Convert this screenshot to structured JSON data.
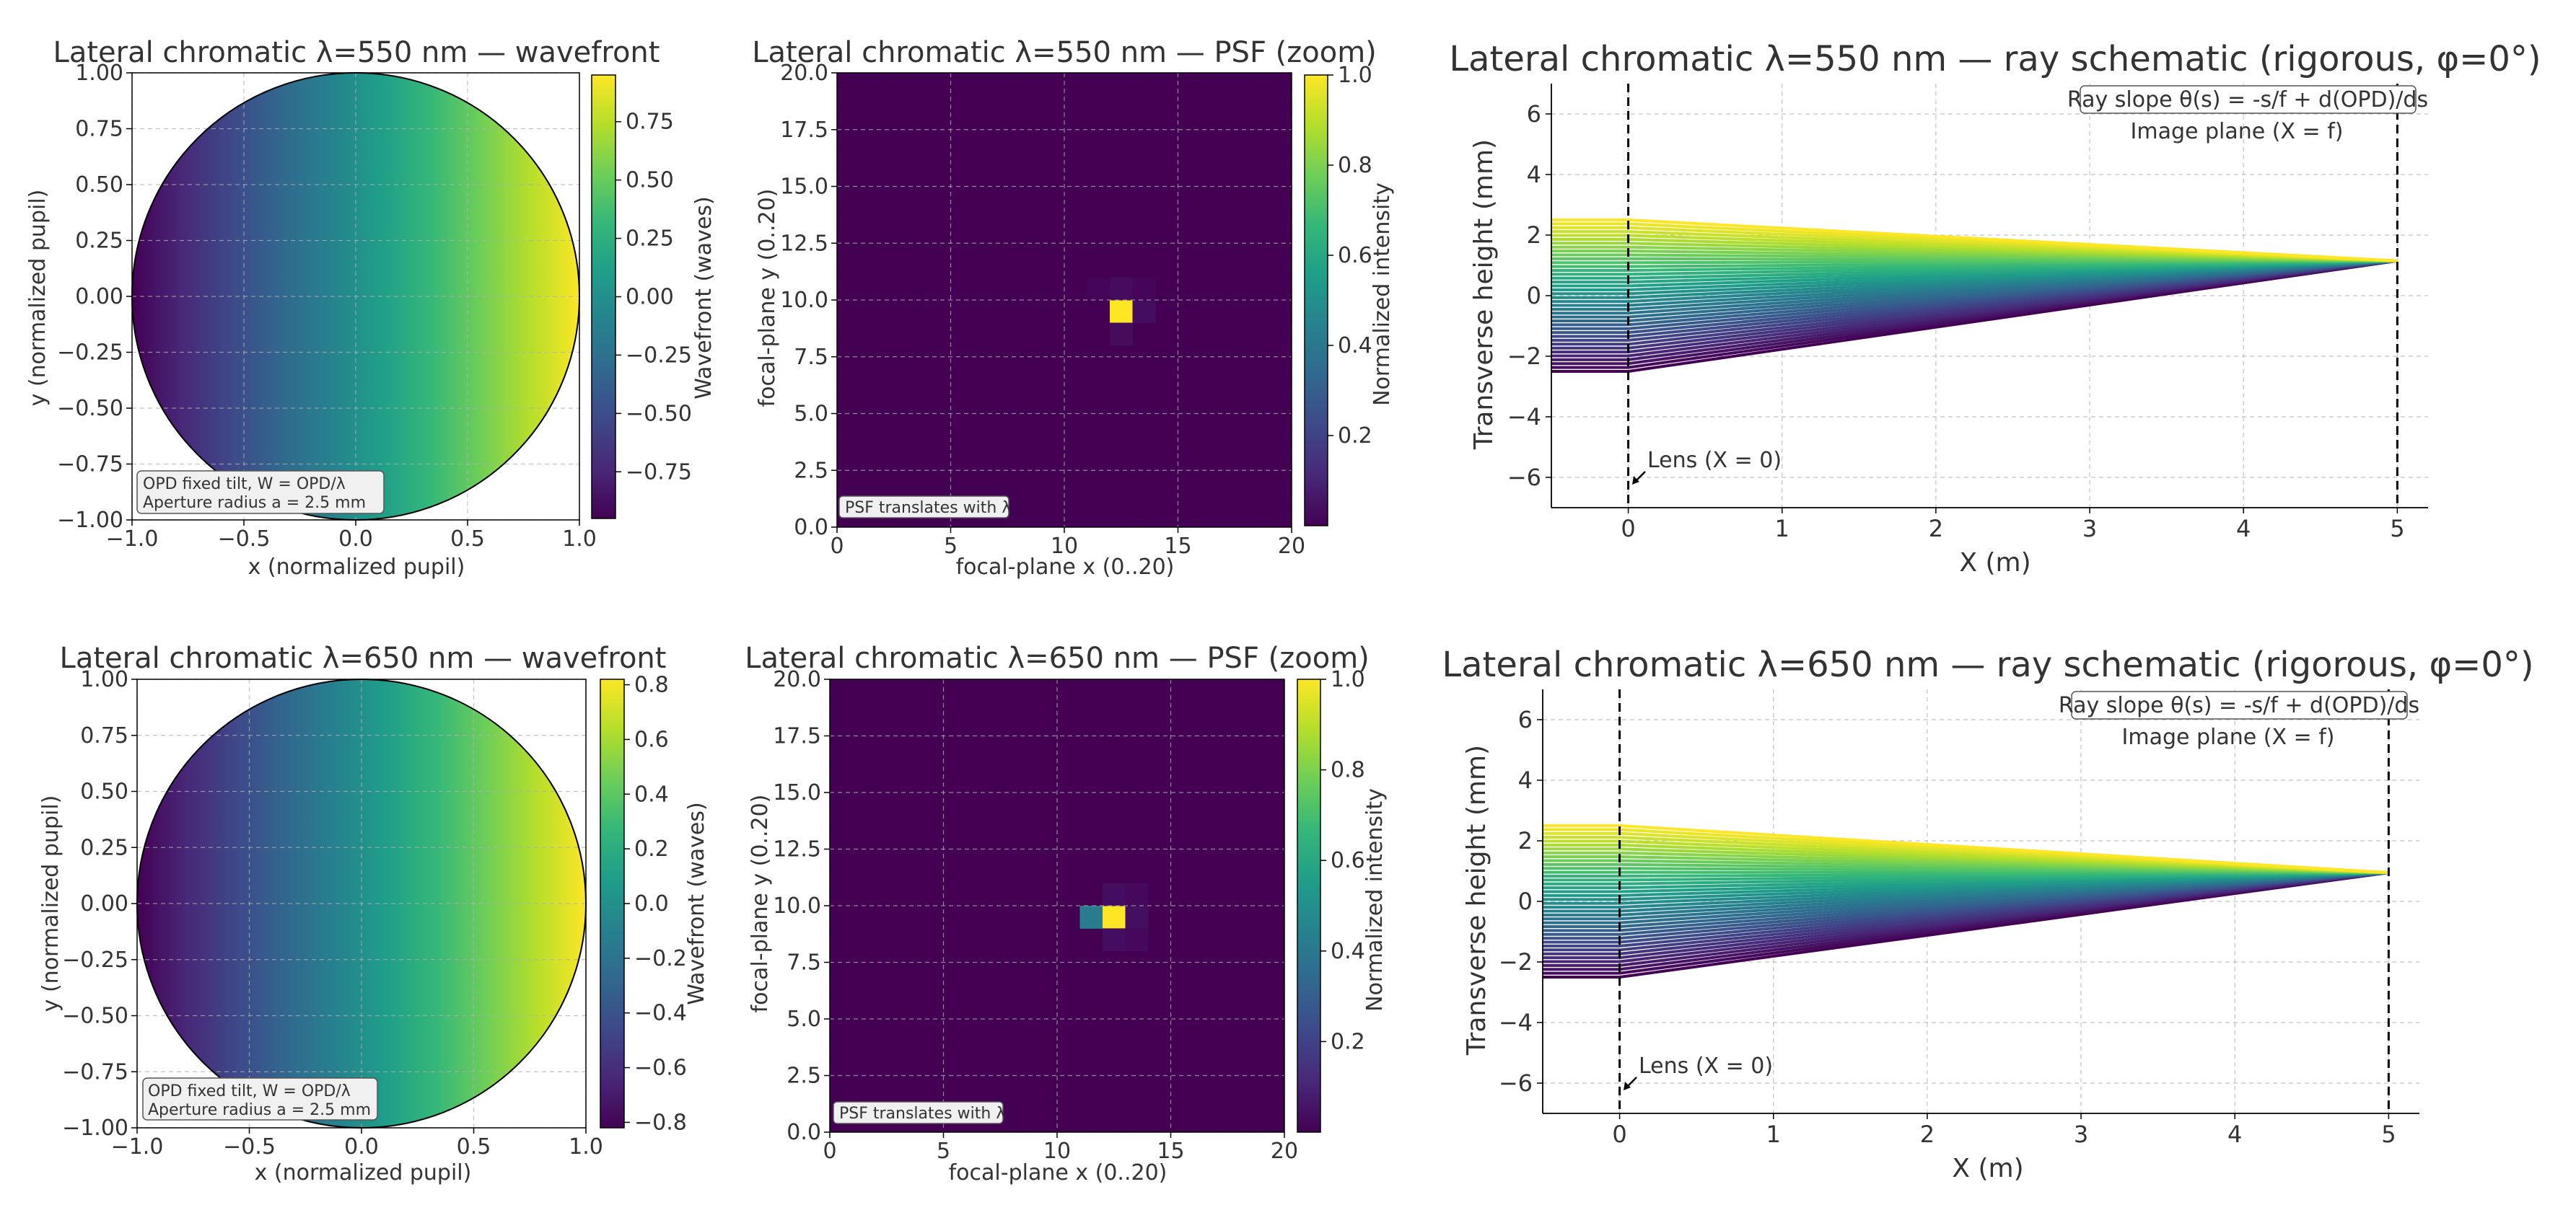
{
  "figure": {
    "panels": [
      {
        "title": "Lateral chromatic  λ=550 nm — wavefront",
        "xlabel": "x (normalized pupil)",
        "ylabel": "y (normalized pupil)",
        "colorbar_label": "Wavefront (waves)",
        "annotation_line1": "OPD fixed tilt, W = OPD/λ",
        "annotation_line2": "Aperture radius a = 2.5 mm"
      },
      {
        "title": "Lateral chromatic  λ=550 nm — PSF (zoom)",
        "xlabel": "focal-plane x (0..20)",
        "ylabel": "focal-plane y (0..20)",
        "colorbar_label": "Normalized intensity",
        "annotation": "PSF translates with λ"
      },
      {
        "title": "Lateral chromatic  λ=550 nm — ray schematic (rigorous, φ=0°)",
        "xlabel": "X (m)",
        "ylabel": "Transverse height (mm)",
        "box_annotation": "Ray slope θ(s) = -s/f + d(OPD)/ds",
        "image_plane_label": "Image plane (X = f)",
        "lens_label": "Lens (X = 0)"
      },
      {
        "title": "Lateral chromatic  λ=650 nm — wavefront",
        "xlabel": "x (normalized pupil)",
        "ylabel": "y (normalized pupil)",
        "colorbar_label": "Wavefront (waves)",
        "annotation_line1": "OPD fixed tilt, W = OPD/λ",
        "annotation_line2": "Aperture radius a = 2.5 mm"
      },
      {
        "title": "Lateral chromatic  λ=650 nm — PSF (zoom)",
        "xlabel": "focal-plane x (0..20)",
        "ylabel": "focal-plane y (0..20)",
        "colorbar_label": "Normalized intensity",
        "annotation": "PSF translates with λ"
      },
      {
        "title": "Lateral chromatic  λ=650 nm — ray schematic (rigorous, φ=0°)",
        "xlabel": "X (m)",
        "ylabel": "Transverse height (mm)",
        "box_annotation": "Ray slope θ(s) = -s/f + d(OPD)/ds",
        "image_plane_label": "Image plane (X = f)",
        "lens_label": "Lens (X = 0)"
      }
    ]
  },
  "colors": {
    "colormap": "viridis",
    "viridis_stops": [
      "#440154",
      "#482878",
      "#3e4989",
      "#31688e",
      "#26828e",
      "#1f9e89",
      "#35b779",
      "#6ece58",
      "#b5de2b",
      "#fde725"
    ],
    "grid": "#b0b0b0",
    "axis": "#000000",
    "text": "#333333",
    "annotation_box": "#f0f0f0"
  },
  "chart_data": [
    {
      "type": "heatmap",
      "title": "Lateral chromatic  λ=550 nm — wavefront",
      "xlabel": "x (normalized pupil)",
      "ylabel": "y (normalized pupil)",
      "xlim": [
        -1.0,
        1.0
      ],
      "ylim": [
        -1.0,
        1.0
      ],
      "x_ticks": [
        -1.0,
        -0.5,
        0.0,
        0.5,
        1.0
      ],
      "x_tick_labels": [
        "−1.0",
        "−0.5",
        "0.0",
        "0.5",
        "1.0"
      ],
      "y_ticks": [
        -1.0,
        -0.75,
        -0.5,
        -0.25,
        0.0,
        0.25,
        0.5,
        0.75,
        1.0
      ],
      "y_tick_labels": [
        "−1.00",
        "−0.75",
        "−0.50",
        "−0.25",
        "0.00",
        "0.25",
        "0.50",
        "0.75",
        "1.00"
      ],
      "aperture": "unit circle",
      "field": "W(x,y) = 0.95 * x (linear tilt along x)",
      "tilt_waves": 0.95,
      "colorbar": {
        "label": "Wavefront (waves)",
        "range": [
          -0.95,
          0.95
        ],
        "ticks": [
          -0.75,
          -0.5,
          -0.25,
          0.0,
          0.25,
          0.5,
          0.75
        ],
        "tick_labels": [
          "−0.75",
          "−0.50",
          "−0.25",
          "0.00",
          "0.25",
          "0.50",
          "0.75"
        ]
      },
      "grid": true
    },
    {
      "type": "heatmap",
      "title": "Lateral chromatic  λ=550 nm — PSF (zoom)",
      "xlabel": "focal-plane x (0..20)",
      "ylabel": "focal-plane y (0..20)",
      "xlim": [
        0,
        20
      ],
      "ylim": [
        0,
        20
      ],
      "x_ticks": [
        0,
        5,
        10,
        15,
        20
      ],
      "x_tick_labels": [
        "0",
        "5",
        "10",
        "15",
        "20"
      ],
      "y_ticks": [
        0,
        2.5,
        5,
        7.5,
        10,
        12.5,
        15,
        17.5,
        20
      ],
      "y_tick_labels": [
        "0.0",
        "2.5",
        "5.0",
        "7.5",
        "10.0",
        "12.5",
        "15.0",
        "17.5",
        "20.0"
      ],
      "grid_size": 20,
      "pixels": [
        {
          "col": 11,
          "row": 9,
          "value": 0.0
        },
        {
          "col": 12,
          "row": 9,
          "value": 1.0
        },
        {
          "col": 13,
          "row": 9,
          "value": 0.035
        },
        {
          "col": 12,
          "row": 8,
          "value": 0.03
        },
        {
          "col": 12,
          "row": 10,
          "value": 0.03
        },
        {
          "col": 11,
          "row": 10,
          "value": 0.015
        },
        {
          "col": 13,
          "row": 10,
          "value": 0.015
        }
      ],
      "colorbar": {
        "label": "Normalized intensity",
        "range": [
          0.0,
          1.0
        ],
        "ticks": [
          0.2,
          0.4,
          0.6,
          0.8,
          1.0
        ],
        "tick_labels": [
          "0.2",
          "0.4",
          "0.6",
          "0.8",
          "1.0"
        ]
      },
      "grid": true
    },
    {
      "type": "line",
      "title": "Lateral chromatic  λ=550 nm — ray schematic (rigorous, φ=0°)",
      "xlabel": "X (m)",
      "ylabel": "Transverse height (mm)",
      "xlim": [
        -0.5,
        5.2
      ],
      "ylim": [
        -7.0,
        7.0
      ],
      "x_ticks": [
        0,
        1,
        2,
        3,
        4,
        5
      ],
      "x_tick_labels": [
        "0",
        "1",
        "2",
        "3",
        "4",
        "5"
      ],
      "y_ticks": [
        -6,
        -4,
        -2,
        0,
        2,
        4,
        6
      ],
      "y_tick_labels": [
        "−6",
        "−4",
        "−2",
        "0",
        "2",
        "4",
        "6"
      ],
      "ray_fan": {
        "n_rays": 40,
        "aperture_mm": 2.5,
        "lens_x_m": 0.0,
        "start_x_m": -0.5,
        "image_plane_x_m": 5.0,
        "focus_height_mm": 1.15
      },
      "vertical_lines_x": [
        0.0,
        5.0
      ],
      "grid": true
    },
    {
      "type": "heatmap",
      "title": "Lateral chromatic  λ=650 nm — wavefront",
      "xlabel": "x (normalized pupil)",
      "ylabel": "y (normalized pupil)",
      "xlim": [
        -1.0,
        1.0
      ],
      "ylim": [
        -1.0,
        1.0
      ],
      "x_ticks": [
        -1.0,
        -0.5,
        0.0,
        0.5,
        1.0
      ],
      "x_tick_labels": [
        "−1.0",
        "−0.5",
        "0.0",
        "0.5",
        "1.0"
      ],
      "y_ticks": [
        -1.0,
        -0.75,
        -0.5,
        -0.25,
        0.0,
        0.25,
        0.5,
        0.75,
        1.0
      ],
      "y_tick_labels": [
        "−1.00",
        "−0.75",
        "−0.50",
        "−0.25",
        "0.00",
        "0.25",
        "0.50",
        "0.75",
        "1.00"
      ],
      "aperture": "unit circle",
      "field": "W(x,y) = 0.82 * x (linear tilt along x)",
      "tilt_waves": 0.82,
      "colorbar": {
        "label": "Wavefront (waves)",
        "range": [
          -0.82,
          0.82
        ],
        "ticks": [
          -0.8,
          -0.6,
          -0.4,
          -0.2,
          0.0,
          0.2,
          0.4,
          0.6,
          0.8
        ],
        "tick_labels": [
          "−0.8",
          "−0.6",
          "−0.4",
          "−0.2",
          "0.0",
          "0.2",
          "0.4",
          "0.6",
          "0.8"
        ]
      },
      "grid": true
    },
    {
      "type": "heatmap",
      "title": "Lateral chromatic  λ=650 nm — PSF (zoom)",
      "xlabel": "focal-plane x (0..20)",
      "ylabel": "focal-plane y (0..20)",
      "xlim": [
        0,
        20
      ],
      "ylim": [
        0,
        20
      ],
      "x_ticks": [
        0,
        5,
        10,
        15,
        20
      ],
      "x_tick_labels": [
        "0",
        "5",
        "10",
        "15",
        "20"
      ],
      "y_ticks": [
        0,
        2.5,
        5,
        7.5,
        10,
        12.5,
        15,
        17.5,
        20
      ],
      "y_tick_labels": [
        "0.0",
        "2.5",
        "5.0",
        "7.5",
        "10.0",
        "12.5",
        "15.0",
        "17.5",
        "20.0"
      ],
      "grid_size": 20,
      "pixels": [
        {
          "col": 11,
          "row": 9,
          "value": 0.42
        },
        {
          "col": 12,
          "row": 9,
          "value": 1.0
        },
        {
          "col": 13,
          "row": 9,
          "value": 0.04
        },
        {
          "col": 12,
          "row": 8,
          "value": 0.035
        },
        {
          "col": 12,
          "row": 10,
          "value": 0.035
        },
        {
          "col": 13,
          "row": 10,
          "value": 0.02
        },
        {
          "col": 13,
          "row": 8,
          "value": 0.02
        }
      ],
      "colorbar": {
        "label": "Normalized intensity",
        "range": [
          0.0,
          1.0
        ],
        "ticks": [
          0.2,
          0.4,
          0.6,
          0.8,
          1.0
        ],
        "tick_labels": [
          "0.2",
          "0.4",
          "0.6",
          "0.8",
          "1.0"
        ]
      },
      "grid": true
    },
    {
      "type": "line",
      "title": "Lateral chromatic  λ=650 nm — ray schematic (rigorous, φ=0°)",
      "xlabel": "X (m)",
      "ylabel": "Transverse height (mm)",
      "xlim": [
        -0.5,
        5.2
      ],
      "ylim": [
        -7.0,
        7.0
      ],
      "x_ticks": [
        0,
        1,
        2,
        3,
        4,
        5
      ],
      "x_tick_labels": [
        "0",
        "1",
        "2",
        "3",
        "4",
        "5"
      ],
      "y_ticks": [
        -6,
        -4,
        -2,
        0,
        2,
        4,
        6
      ],
      "y_tick_labels": [
        "−6",
        "−4",
        "−2",
        "0",
        "2",
        "4",
        "6"
      ],
      "ray_fan": {
        "n_rays": 40,
        "aperture_mm": 2.5,
        "lens_x_m": 0.0,
        "start_x_m": -0.5,
        "image_plane_x_m": 5.0,
        "focus_height_mm": 0.95
      },
      "vertical_lines_x": [
        0.0,
        5.0
      ],
      "grid": true
    }
  ]
}
